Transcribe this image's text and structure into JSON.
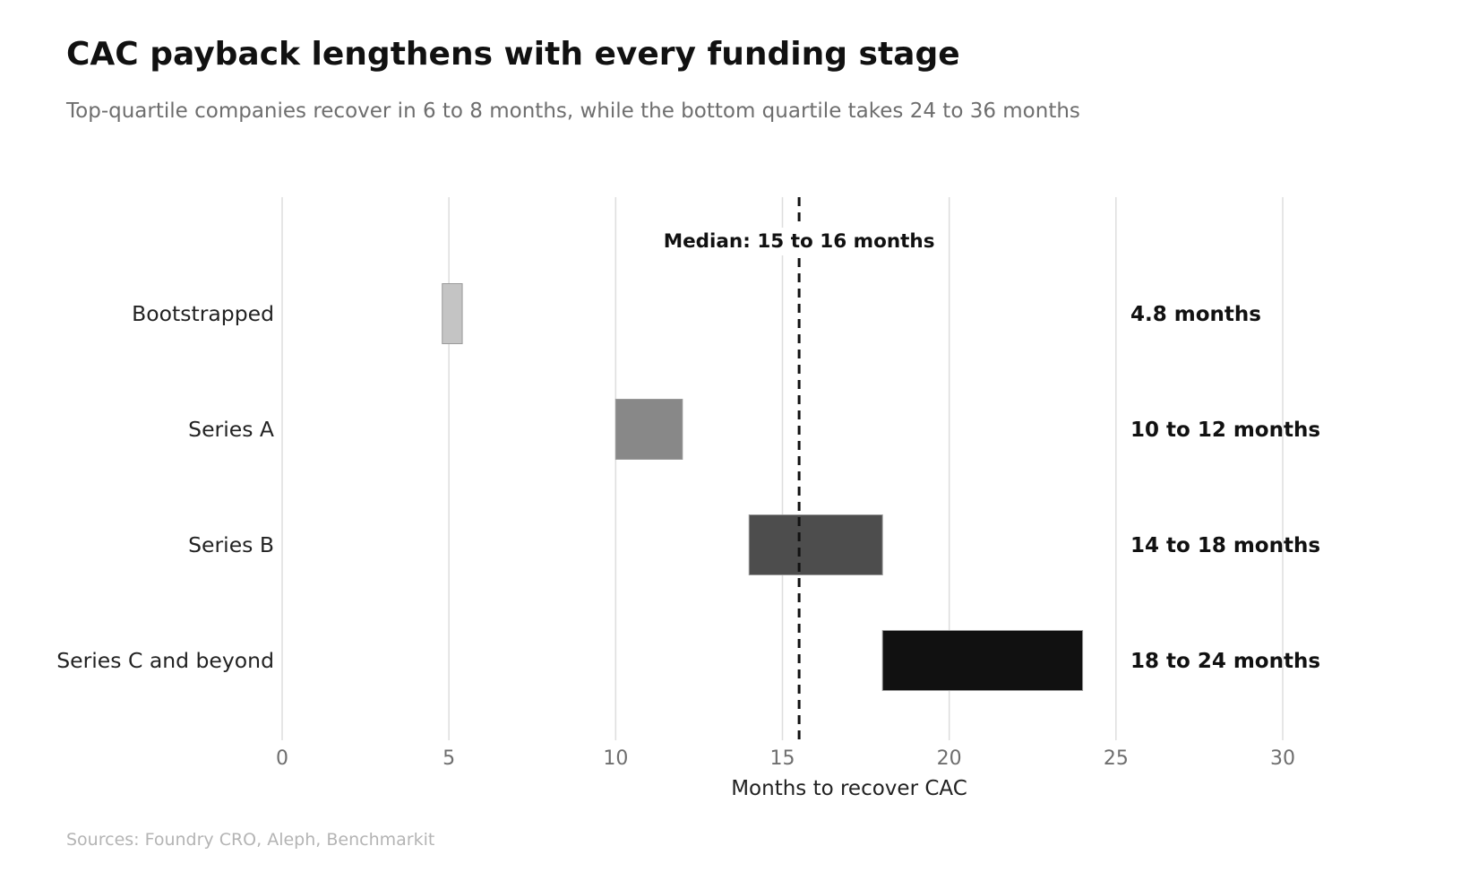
{
  "chart_data": {
    "type": "bar",
    "title": "CAC payback lengthens with every funding stage",
    "subtitle": "Top-quartile companies recover in 6 to 8 months, while the bottom quartile takes 24 to 36 months",
    "xlabel": "Months to recover CAC",
    "ylabel": "",
    "xlim": [
      0,
      30
    ],
    "xticks": [
      0,
      5,
      10,
      15,
      20,
      25,
      30
    ],
    "orientation": "horizontal",
    "grid": true,
    "categories": [
      "Bootstrapped",
      "Series A",
      "Series B",
      "Series C and beyond"
    ],
    "ranges": [
      {
        "category": "Bootstrapped",
        "start": 4.8,
        "end": 5.4,
        "label": "4.8 months",
        "color": "#c4c4c4"
      },
      {
        "category": "Series A",
        "start": 10,
        "end": 12,
        "label": "10 to 12 months",
        "color": "#888888"
      },
      {
        "category": "Series B",
        "start": 14,
        "end": 18,
        "label": "14 to 18 months",
        "color": "#4d4d4d"
      },
      {
        "category": "Series C and beyond",
        "start": 18,
        "end": 24,
        "label": "18 to 24 months",
        "color": "#111111"
      }
    ],
    "reference_line": {
      "value": 15.5,
      "label": "Median: 15 to 16 months"
    },
    "source": "Sources: Foundry CRO, Aleph, Benchmarkit"
  }
}
